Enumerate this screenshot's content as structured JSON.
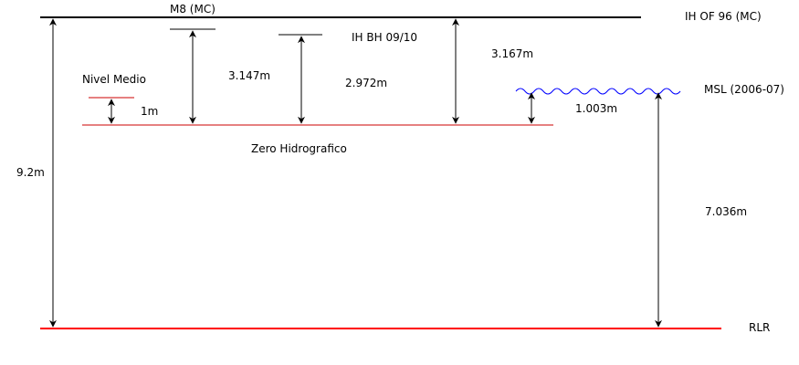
{
  "labels": {
    "m8": "M8 (MC)",
    "ih_of_96": "IH OF 96 (MC)",
    "ih_bh": "IH BH 09/10",
    "nivel_medio": "Nivel Medio",
    "msl": "MSL (2006-07)",
    "zero_hidrografico": "Zero Hidrografico",
    "rlr": "RLR"
  },
  "measurements": {
    "nivel_medio_height": "1m",
    "m8_height": "3.147m",
    "ih_bh_height": "2.972m",
    "ih_of_96_height": "3.167m",
    "msl_height": "1.003m",
    "total_height": "9.2m",
    "msl_rlr_height": "7.036m"
  },
  "colors": {
    "datum_line": "#ff0000",
    "zero_line": "#cc0000",
    "msl_wave": "#0000ff",
    "top_line": "#000000"
  }
}
